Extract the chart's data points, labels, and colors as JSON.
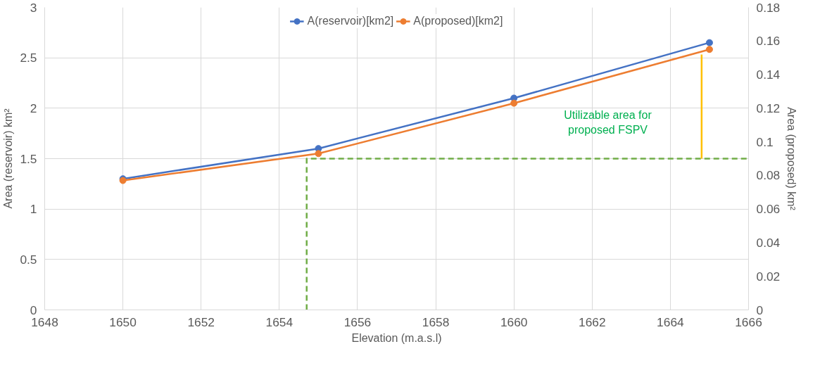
{
  "chart_data": {
    "type": "line",
    "xlabel": "Elevation (m.a.s.l)",
    "ylabel": "Area (reservoir) km²",
    "y2label": "Area (proposed) km²",
    "x": [
      1650,
      1655,
      1660,
      1665
    ],
    "series": [
      {
        "name": "A(reservoir)[km2]",
        "color": "#4472c4",
        "values": [
          1.3,
          1.6,
          2.1,
          2.65
        ],
        "marker": "circle"
      },
      {
        "name": "A(proposed)[km2]",
        "color": "#ed7d31",
        "values": [
          0.077,
          0.093,
          0.123,
          0.155
        ],
        "axis": "y2",
        "marker": "circle"
      },
      {
        "color": "#70ad47",
        "x": [
          1654.7,
          1654.7,
          1666
        ],
        "values": [
          0,
          0.09,
          0.09
        ],
        "axis": "y2",
        "marker": "none",
        "line_style": "dashed"
      },
      {
        "color": "#ffc000",
        "x": [
          1664.8,
          1664.8
        ],
        "values": [
          0.09,
          0.152
        ],
        "axis": "y2",
        "marker": "none"
      }
    ],
    "annotations": [
      "Utilizable area for\nproposed FSPV"
    ],
    "xlim": [
      1648,
      1666
    ],
    "xticks": [
      1648,
      1650,
      1652,
      1654,
      1656,
      1658,
      1660,
      1662,
      1664,
      1666
    ],
    "ylim": [
      0,
      3
    ],
    "yticks": [
      0,
      0.5,
      1,
      1.5,
      2,
      2.5,
      3
    ],
    "y2lim": [
      0,
      0.18
    ],
    "y2ticks": [
      0,
      0.02,
      0.04,
      0.06,
      0.08,
      0.1,
      0.12,
      0.14,
      0.16,
      0.18
    ],
    "grid": true,
    "legend": "top",
    "line_style": "solid"
  }
}
